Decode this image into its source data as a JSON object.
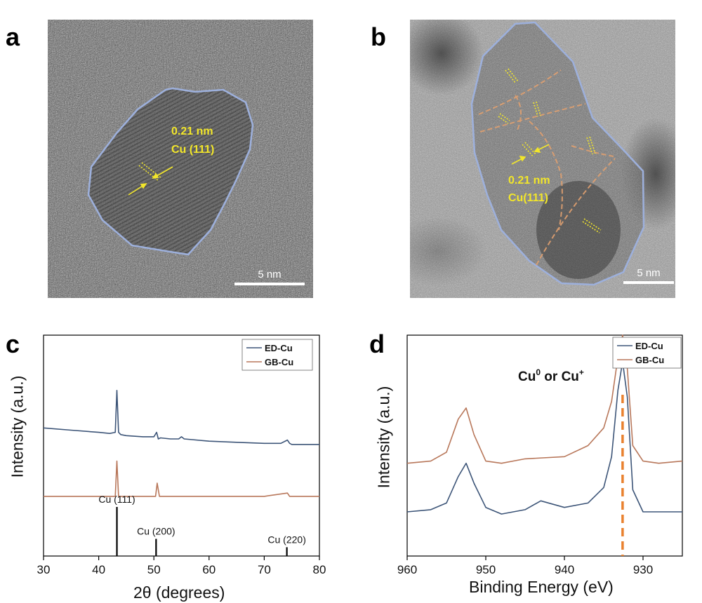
{
  "panels": {
    "a": {
      "letter": "a",
      "spacing": "0.21 nm",
      "plane": "Cu (111)",
      "scalebar": "5 nm"
    },
    "b": {
      "letter": "b",
      "spacing": "0.21 nm",
      "plane": "Cu(111)",
      "scalebar": "5 nm"
    },
    "c": {
      "letter": "c"
    },
    "d": {
      "letter": "d"
    }
  },
  "colors": {
    "ed": "#3d5578",
    "gb": "#b8775a",
    "outline": "#9db0dc",
    "label": "#f2e62a",
    "dash": "#e9812e"
  },
  "chart_data": [
    {
      "type": "line",
      "panel": "c",
      "xlabel": "2θ (degrees)",
      "ylabel": "Intensity (a.u.)",
      "xlim": [
        30,
        80
      ],
      "xticks": [
        30,
        40,
        50,
        60,
        70,
        80
      ],
      "legend_position": "top-right",
      "series": [
        {
          "name": "ED-Cu",
          "color": "#3d5578",
          "x": [
            30,
            35,
            40,
            42,
            43,
            43.3,
            43.6,
            44,
            45,
            48,
            50,
            50.5,
            50.8,
            51.2,
            53,
            54.5,
            55,
            55.5,
            60,
            65,
            70,
            73,
            74.2,
            74.6,
            75,
            78,
            80
          ],
          "y": [
            0.58,
            0.57,
            0.56,
            0.555,
            0.56,
            0.75,
            0.56,
            0.55,
            0.545,
            0.54,
            0.54,
            0.56,
            0.53,
            0.535,
            0.53,
            0.53,
            0.54,
            0.53,
            0.52,
            0.515,
            0.51,
            0.51,
            0.525,
            0.51,
            0.505,
            0.505,
            0.505
          ]
        },
        {
          "name": "GB-Cu",
          "color": "#b8775a",
          "x": [
            30,
            35,
            40,
            43,
            43.3,
            43.6,
            44,
            48,
            50.3,
            50.6,
            51,
            54,
            60,
            70,
            74.2,
            74.6,
            75,
            80
          ],
          "y": [
            0.27,
            0.27,
            0.27,
            0.27,
            0.43,
            0.27,
            0.27,
            0.27,
            0.27,
            0.33,
            0.27,
            0.27,
            0.27,
            0.27,
            0.285,
            0.27,
            0.27,
            0.27
          ]
        }
      ],
      "reference_lines": [
        {
          "label": "Cu (111)",
          "x": 43.3,
          "height": 1.0
        },
        {
          "label": "Cu (200)",
          "x": 50.4,
          "height": 0.35
        },
        {
          "label": "Cu (220)",
          "x": 74.1,
          "height": 0.18
        }
      ]
    },
    {
      "type": "line",
      "panel": "d",
      "xlabel": "Binding Energy (eV)",
      "ylabel": "Intensity (a.u.)",
      "xlim": [
        960,
        925
      ],
      "xticks": [
        960,
        950,
        940,
        930
      ],
      "annotation": {
        "text": "Cu",
        "sup1": "0",
        "mid": " or Cu",
        "sup2": "+"
      },
      "dashed_line_x": 932.6,
      "legend_position": "top-right",
      "series": [
        {
          "name": "ED-Cu",
          "color": "#3d5578",
          "x": [
            960,
            957,
            955,
            953.5,
            952.5,
            951.5,
            950,
            948,
            945,
            943,
            940,
            937,
            935,
            934,
            933.2,
            932.6,
            932,
            931.3,
            930,
            928,
            925
          ],
          "y": [
            0.2,
            0.21,
            0.24,
            0.36,
            0.42,
            0.33,
            0.22,
            0.19,
            0.21,
            0.25,
            0.22,
            0.24,
            0.31,
            0.45,
            0.75,
            0.88,
            0.72,
            0.3,
            0.2,
            0.2,
            0.2
          ]
        },
        {
          "name": "GB-Cu",
          "color": "#b8775a",
          "x": [
            960,
            957,
            955,
            953.5,
            952.5,
            951.5,
            950,
            948,
            945,
            940,
            937,
            935,
            934,
            933.2,
            932.6,
            932,
            931.3,
            930,
            928,
            925
          ],
          "y": [
            0.42,
            0.43,
            0.47,
            0.62,
            0.67,
            0.55,
            0.43,
            0.42,
            0.44,
            0.45,
            0.5,
            0.58,
            0.7,
            0.9,
            1.0,
            0.85,
            0.5,
            0.43,
            0.42,
            0.43
          ]
        }
      ]
    }
  ]
}
